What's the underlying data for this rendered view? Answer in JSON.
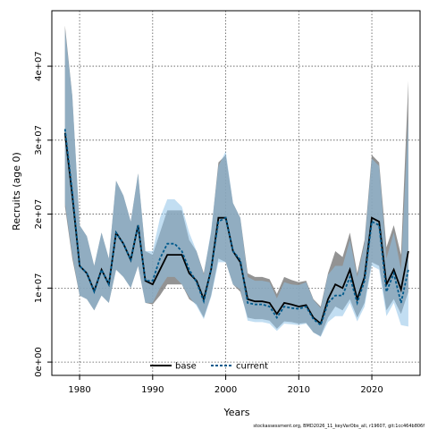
{
  "chart_data": {
    "type": "line",
    "xlabel": "Years",
    "ylabel": "Recruits (age 0)",
    "xlim": [
      1976.2,
      2026.6
    ],
    "ylim": [
      -1800000,
      47500000
    ],
    "x_ticks": [
      1980,
      1990,
      2000,
      2010,
      2020
    ],
    "x_tick_labels": [
      "1980",
      "1990",
      "2000",
      "2010",
      "2020"
    ],
    "y_ticks": [
      0,
      10000000,
      20000000,
      30000000,
      40000000
    ],
    "y_tick_labels": [
      "0e+00",
      "1e+07",
      "2e+07",
      "3e+07",
      "4e+07"
    ],
    "grid": true,
    "legend_position": "bottom",
    "footer": "stockassessment.org, BMD2026_11_keyVarObs_all, r19607, git:1cc464b806f",
    "x": [
      1978,
      1979,
      1980,
      1981,
      1982,
      1983,
      1984,
      1985,
      1986,
      1987,
      1988,
      1989,
      1990,
      1991,
      1992,
      1993,
      1994,
      1995,
      1996,
      1997,
      1998,
      1999,
      2000,
      2001,
      2002,
      2003,
      2004,
      2005,
      2006,
      2007,
      2008,
      2009,
      2010,
      2011,
      2012,
      2013,
      2014,
      2015,
      2016,
      2017,
      2018,
      2019,
      2020,
      2021,
      2022,
      2023,
      2024,
      2025
    ],
    "series": [
      {
        "name": "base",
        "color": "#000000",
        "band_color": "#808080",
        "values": [
          31000000,
          22500000,
          13000000,
          12000000,
          9600000,
          12500000,
          10500000,
          17500000,
          16000000,
          13800000,
          18500000,
          11000000,
          10500000,
          12500000,
          14500000,
          14500000,
          14500000,
          12000000,
          11000000,
          8500000,
          12500000,
          19500000,
          19500000,
          15000000,
          13500000,
          8500000,
          8200000,
          8200000,
          8000000,
          6500000,
          8000000,
          7800000,
          7500000,
          7700000,
          6000000,
          5200000,
          8500000,
          10500000,
          10000000,
          12500000,
          8500000,
          11500000,
          19500000,
          19000000,
          10500000,
          12500000,
          9800000,
          15000000
        ],
        "lower": [
          21000000,
          14000000,
          9000000,
          8500000,
          7000000,
          9000000,
          8000000,
          12500000,
          11500000,
          10000000,
          13000000,
          8000000,
          7800000,
          9000000,
          10500000,
          10500000,
          10500000,
          8500000,
          7800000,
          6000000,
          9000000,
          14000000,
          13500000,
          10500000,
          9500000,
          6000000,
          5800000,
          5800000,
          5600000,
          4500000,
          5500000,
          5400000,
          5200000,
          5300000,
          4000000,
          3500000,
          6000000,
          7500000,
          7000000,
          8500000,
          6000000,
          8000000,
          13500000,
          13000000,
          7000000,
          8500000,
          6500000,
          9500000
        ],
        "upper": [
          45500000,
          36000000,
          18500000,
          17000000,
          13000000,
          17500000,
          14000000,
          24500000,
          22500000,
          19000000,
          25500000,
          15000000,
          14500000,
          17500000,
          20500000,
          20500000,
          20500000,
          16500000,
          15000000,
          12000000,
          17500000,
          27000000,
          28000000,
          21500000,
          19500000,
          12000000,
          11500000,
          11500000,
          11200000,
          9200000,
          11500000,
          11100000,
          10800000,
          11000000,
          8500000,
          7500000,
          12000000,
          15000000,
          14200000,
          17500000,
          12000000,
          16500000,
          28000000,
          27000000,
          15500000,
          18500000,
          14500000,
          38000000
        ]
      },
      {
        "name": "current",
        "color": "#005a8c",
        "band_color": "#8fc3e8",
        "values": [
          31500000,
          23000000,
          13000000,
          12000000,
          9500000,
          12500000,
          10500000,
          17500000,
          16000000,
          13800000,
          18500000,
          11000000,
          11000000,
          14000000,
          16000000,
          16000000,
          15000000,
          12500000,
          10800000,
          8200000,
          12500000,
          19000000,
          19500000,
          15000000,
          13800000,
          8000000,
          7800000,
          7800000,
          7500000,
          6000000,
          7500000,
          7300000,
          7200000,
          7500000,
          5800000,
          5000000,
          8000000,
          9000000,
          9000000,
          11500000,
          8000000,
          11000000,
          19000000,
          18500000,
          9500000,
          12000000,
          8000000,
          12500000
        ],
        "lower": [
          21500000,
          14500000,
          9000000,
          8500000,
          7000000,
          9000000,
          8000000,
          12500000,
          11500000,
          10000000,
          13000000,
          8000000,
          8000000,
          10000000,
          11500000,
          11500000,
          10500000,
          8800000,
          7600000,
          5800000,
          8800000,
          13500000,
          13500000,
          10500000,
          9800000,
          5600000,
          5400000,
          5400000,
          5200000,
          4200000,
          5200000,
          5100000,
          5000000,
          5200000,
          4000000,
          3400000,
          5400000,
          6200000,
          6200000,
          8000000,
          5500000,
          7500000,
          13000000,
          12500000,
          6200000,
          8000000,
          5000000,
          4800000
        ],
        "upper": [
          45000000,
          36000000,
          18500000,
          17000000,
          13000000,
          17500000,
          14000000,
          24500000,
          22500000,
          19000000,
          25500000,
          15000000,
          15000000,
          19500000,
          22000000,
          22000000,
          21000000,
          17500000,
          15000000,
          11800000,
          17800000,
          26500000,
          28500000,
          21500000,
          19500000,
          11500000,
          11000000,
          11000000,
          10800000,
          8600000,
          10800000,
          10500000,
          10400000,
          10800000,
          8400000,
          7300000,
          11800000,
          13000000,
          13000000,
          16500000,
          11500000,
          16000000,
          27500000,
          26500000,
          14000000,
          17500000,
          12500000,
          33000000
        ]
      }
    ]
  }
}
